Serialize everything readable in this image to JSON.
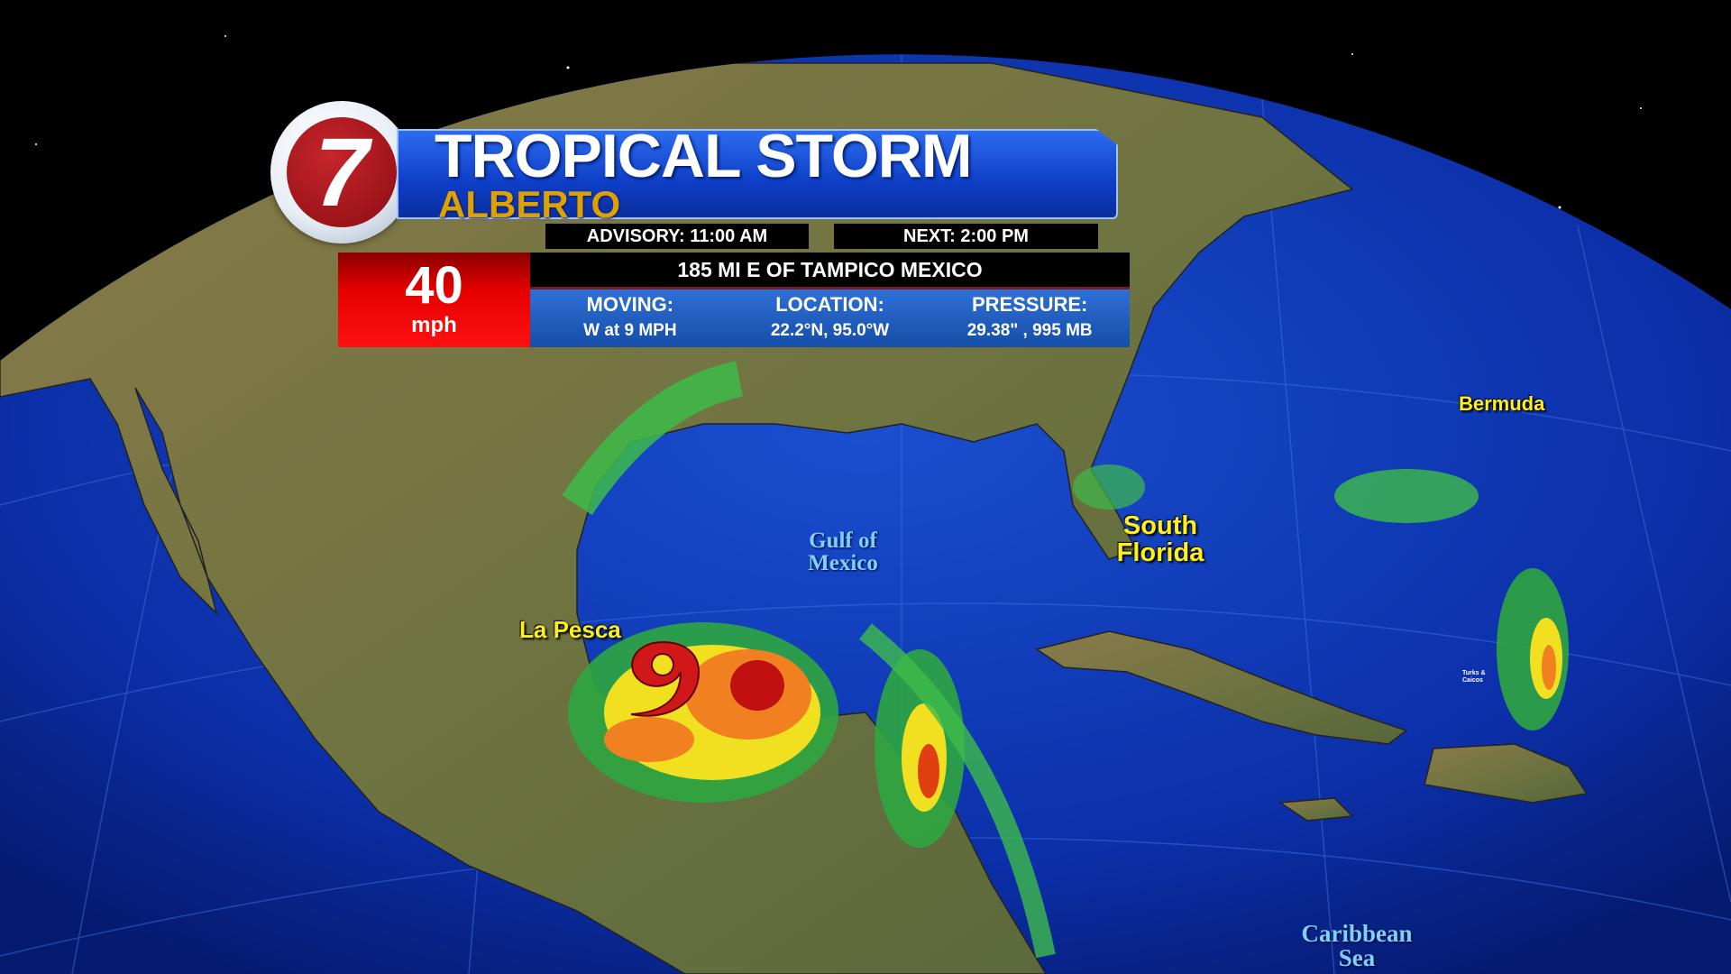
{
  "header": {
    "station_logo_text": "7",
    "title": "TROPICAL STORM",
    "storm_name": "ALBERTO",
    "advisory": "ADVISORY: 11:00 AM",
    "next_advisory": "NEXT: 2:00 PM"
  },
  "storm": {
    "wind_speed": "40",
    "wind_unit": "mph",
    "position_text": "185 MI E OF TAMPICO MEXICO",
    "moving_label": "MOVING:",
    "moving_value": "W at 9 MPH",
    "location_label": "LOCATION:",
    "location_value": "22.2°N, 95.0°W",
    "pressure_label": "PRESSURE:",
    "pressure_value": "29.38\" ,  995 MB"
  },
  "map_labels": {
    "la_pesca": "La Pesca",
    "gulf_of_mexico": "Gulf of Mexico",
    "south_florida": "South Florida",
    "bermuda": "Bermuda",
    "turks_caicos": "Turks & Caicos",
    "caribbean_sea": "Caribbean Sea"
  },
  "colors": {
    "banner_blue": "#1448d8",
    "storm_name_gold": "#e0a000",
    "speed_red": "#e50000",
    "label_yellow": "#ffef1a",
    "ocean": "#0b2fa8"
  }
}
